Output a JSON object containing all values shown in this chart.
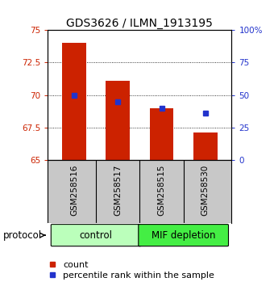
{
  "title": "GDS3626 / ILMN_1913195",
  "samples": [
    "GSM258516",
    "GSM258517",
    "GSM258515",
    "GSM258530"
  ],
  "bar_values": [
    74.0,
    71.1,
    69.0,
    67.1
  ],
  "percentile_values": [
    70.0,
    69.5,
    69.0,
    68.6
  ],
  "bar_color": "#cc2200",
  "marker_color": "#2233cc",
  "ylim_left": [
    65,
    75
  ],
  "ylim_right": [
    0,
    100
  ],
  "yticks_left": [
    65,
    67.5,
    70,
    72.5,
    75
  ],
  "yticks_right": [
    0,
    25,
    50,
    75,
    100
  ],
  "ytick_labels_right": [
    "0",
    "25",
    "50",
    "75",
    "100%"
  ],
  "groups": [
    {
      "label": "control",
      "indices": [
        0,
        1
      ],
      "color": "#bbffbb"
    },
    {
      "label": "MIF depletion",
      "indices": [
        2,
        3
      ],
      "color": "#44ee44"
    }
  ],
  "protocol_label": "protocol",
  "legend_count_label": "count",
  "legend_pct_label": "percentile rank within the sample",
  "bar_width": 0.55,
  "plot_bg": "#ffffff",
  "tick_area_bg": "#c8c8c8",
  "grid_color": "#000000",
  "title_fontsize": 10,
  "tick_fontsize": 7.5,
  "label_fontsize": 8.5,
  "legend_fontsize": 8
}
